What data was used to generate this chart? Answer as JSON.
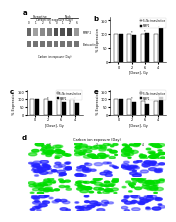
{
  "panel_a": {
    "title_top": "Si-reactive",
    "title_top2": "Nock",
    "band_labels": [
      "MMP 2",
      "Beta actin"
    ],
    "x_labels": [
      "0",
      "1",
      "2",
      "6",
      "0",
      "1",
      "2",
      "6"
    ],
    "xlabel": "Carbon ion exposure (Day)"
  },
  "panel_b": {
    "label": "b",
    "ylabel": "% Expression",
    "xlabel": "[Dose], Gy",
    "xticks": [
      "0",
      "2",
      "6",
      "4"
    ],
    "ymax": 150,
    "yticks": [
      0,
      50,
      100,
      150
    ],
    "legend": [
      "Si-Nc transfection",
      "MMP2"
    ],
    "groups": [
      {
        "vals": [
          100,
          100
        ]
      },
      {
        "vals": [
          100,
          95
        ]
      },
      {
        "vals": [
          100,
          105
        ]
      },
      {
        "vals": [
          100,
          120
        ]
      }
    ],
    "bar_colors": [
      "white",
      "black"
    ]
  },
  "panel_c": {
    "label": "c",
    "ylabel": "% Expression",
    "xlabel": "[Dose], Gy",
    "xticks": [
      "0",
      "2",
      "6",
      "4"
    ],
    "ymax": 150,
    "yticks": [
      0,
      50,
      100,
      150
    ],
    "legend": [
      "Si-Nc transfection",
      "MMP2"
    ],
    "groups": [
      {
        "vals": [
          100,
          100
        ]
      },
      {
        "vals": [
          100,
          88
        ]
      },
      {
        "vals": [
          100,
          80
        ]
      },
      {
        "vals": [
          100,
          75
        ]
      }
    ],
    "bar_colors": [
      "white",
      "black"
    ]
  },
  "panel_e": {
    "label": "e",
    "ylabel": "% Expression",
    "xlabel": "[Dose], Gy",
    "xticks": [
      "0",
      "2",
      "6",
      "4"
    ],
    "ymax": 150,
    "yticks": [
      0,
      50,
      100,
      150
    ],
    "legend": [
      "Si-Nc transfection",
      "MMP2"
    ],
    "groups": [
      {
        "vals": [
          100,
          100
        ]
      },
      {
        "vals": [
          100,
          78
        ]
      },
      {
        "vals": [
          90,
          65
        ]
      },
      {
        "vals": [
          85,
          110
        ]
      }
    ],
    "bar_colors": [
      "white",
      "black"
    ]
  },
  "panel_d": {
    "title": "Carbon ion exposure (Day)",
    "rows": 4,
    "cols": 3,
    "col_labels": [
      "0",
      "2",
      "4"
    ],
    "green_rows": [
      0,
      2
    ],
    "blue_rows": [
      1,
      3
    ]
  },
  "figure_bg": "#ffffff"
}
